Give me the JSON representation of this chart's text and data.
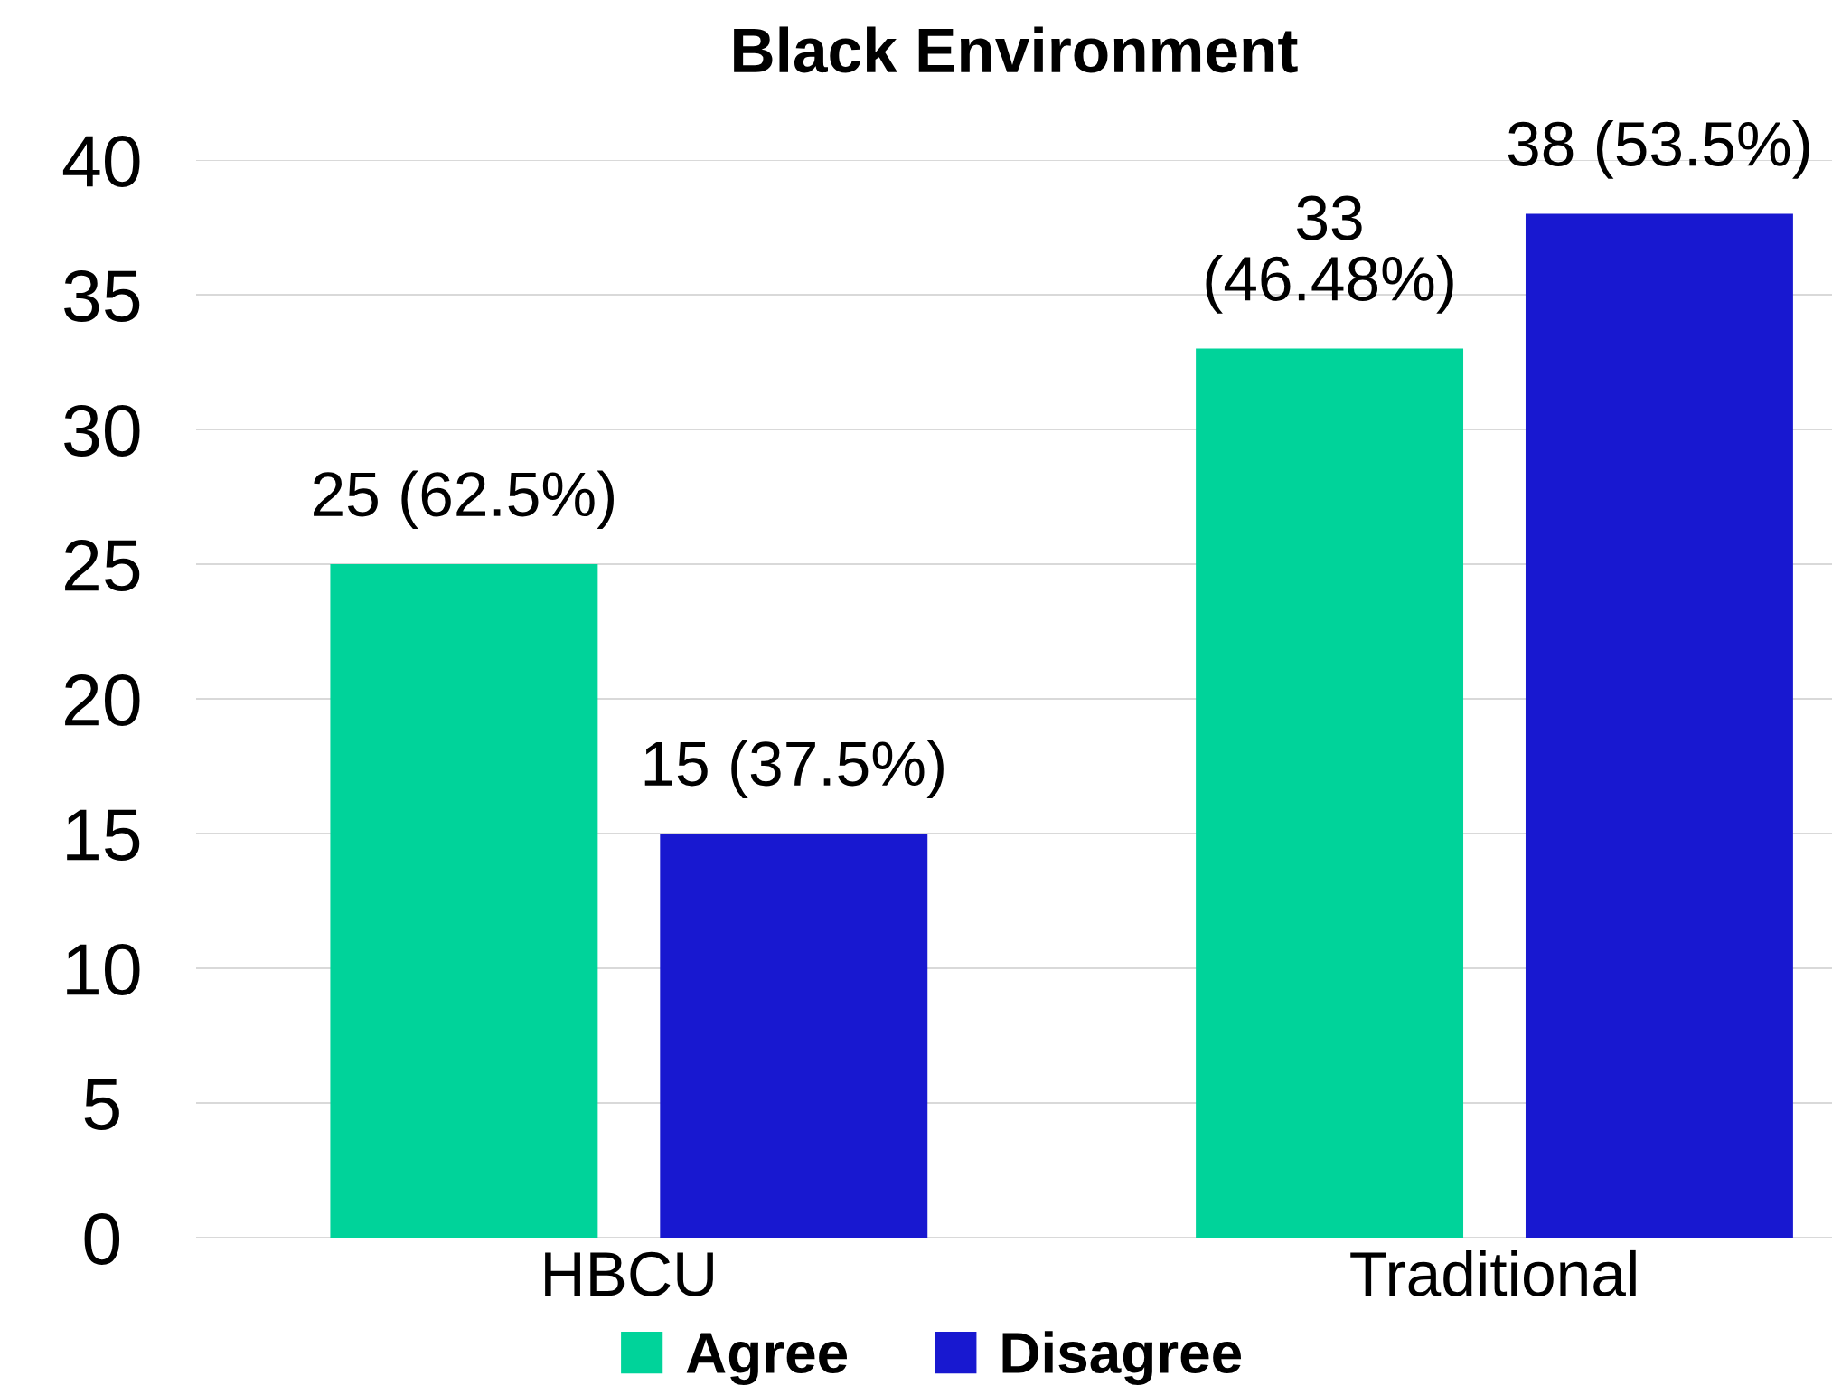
{
  "chart_data": {
    "type": "bar",
    "title": "Black Environment",
    "categories": [
      "HBCU",
      "Traditional"
    ],
    "series": [
      {
        "name": "Agree",
        "color": "#00d39a",
        "values": [
          25,
          33
        ],
        "value_labels": [
          "25 (62.5%)",
          "33\n(46.48%)"
        ]
      },
      {
        "name": "Disagree",
        "color": "#1818d0",
        "values": [
          15,
          38
        ],
        "value_labels": [
          "15 (37.5%)",
          "38 (53.5%)"
        ]
      }
    ],
    "ylim": [
      0,
      40
    ],
    "yticks": [
      0,
      5,
      10,
      15,
      20,
      25,
      30,
      35,
      40
    ],
    "grid": "y",
    "legend": "bottom"
  }
}
